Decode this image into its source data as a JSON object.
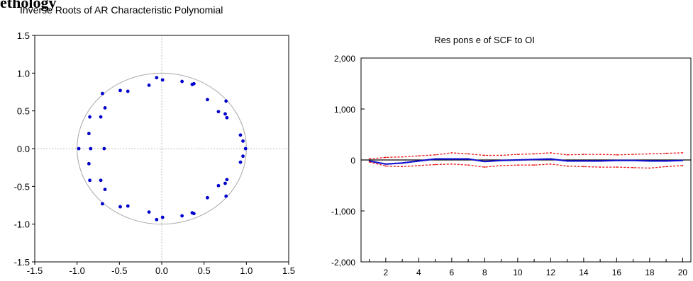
{
  "heading_fragment": "ethology",
  "chart_data": [
    {
      "type": "scatter",
      "title": "Inverse Roots of AR Characteristic Polynomial",
      "xlim": [
        -1.5,
        1.5
      ],
      "ylim": [
        -1.5,
        1.5
      ],
      "xticks": [
        "-1.5",
        "-1.0",
        "-0.5",
        "0.0",
        "0.5",
        "1.0",
        "1.5"
      ],
      "yticks": [
        "-1.5",
        "-1.0",
        "-0.5",
        "0.0",
        "0.5",
        "1.0",
        "1.5"
      ],
      "unit_circle": true,
      "point_color": "#0000cc",
      "points": [
        [
          -0.98,
          0.0
        ],
        [
          -0.84,
          0.0
        ],
        [
          -0.68,
          0.0
        ],
        [
          -0.86,
          0.2
        ],
        [
          -0.86,
          -0.2
        ],
        [
          -0.85,
          0.42
        ],
        [
          -0.85,
          -0.42
        ],
        [
          -0.72,
          0.42
        ],
        [
          -0.72,
          -0.42
        ],
        [
          -0.67,
          0.54
        ],
        [
          -0.67,
          -0.54
        ],
        [
          -0.7,
          0.73
        ],
        [
          -0.7,
          -0.73
        ],
        [
          -0.49,
          0.77
        ],
        [
          -0.49,
          -0.77
        ],
        [
          -0.4,
          0.76
        ],
        [
          -0.4,
          -0.76
        ],
        [
          -0.15,
          0.84
        ],
        [
          -0.15,
          -0.84
        ],
        [
          -0.06,
          0.94
        ],
        [
          -0.06,
          -0.94
        ],
        [
          0.01,
          0.91
        ],
        [
          0.01,
          -0.91
        ],
        [
          0.24,
          0.89
        ],
        [
          0.24,
          -0.89
        ],
        [
          0.36,
          0.85
        ],
        [
          0.36,
          -0.85
        ],
        [
          0.38,
          0.86
        ],
        [
          0.38,
          -0.86
        ],
        [
          0.54,
          0.65
        ],
        [
          0.54,
          -0.65
        ],
        [
          0.67,
          0.49
        ],
        [
          0.67,
          -0.49
        ],
        [
          0.75,
          0.46
        ],
        [
          0.75,
          -0.46
        ],
        [
          0.76,
          0.63
        ],
        [
          0.76,
          -0.63
        ],
        [
          0.77,
          0.41
        ],
        [
          0.77,
          -0.41
        ],
        [
          0.93,
          0.18
        ],
        [
          0.93,
          -0.18
        ],
        [
          0.96,
          0.1
        ],
        [
          0.96,
          -0.1
        ],
        [
          0.99,
          0.0
        ]
      ]
    },
    {
      "type": "line",
      "title": "Res pons e of SCF to OI",
      "xlim": [
        0.5,
        20.5
      ],
      "ylim": [
        -2000,
        2000
      ],
      "xticks": [
        "2",
        "4",
        "6",
        "8",
        "10",
        "12",
        "14",
        "16",
        "18",
        "20"
      ],
      "yticks": [
        "2,000",
        "1,000",
        "0",
        "-1,000",
        "-2,000"
      ],
      "ytick_values": [
        2000,
        1000,
        0,
        -1000,
        -2000
      ],
      "x": [
        1,
        2,
        3,
        4,
        5,
        6,
        7,
        8,
        9,
        10,
        11,
        12,
        13,
        14,
        15,
        16,
        17,
        18,
        19,
        20
      ],
      "series": [
        {
          "role": "response",
          "color": "#1010cc",
          "style": "solid",
          "values": [
            -20,
            -80,
            -60,
            -20,
            20,
            20,
            20,
            -30,
            -10,
            0,
            10,
            20,
            -20,
            -20,
            -20,
            -10,
            -10,
            -20,
            -20,
            -10
          ]
        },
        {
          "role": "upper-band",
          "color": "#ee1111",
          "style": "dashed",
          "values": [
            20,
            50,
            60,
            80,
            100,
            140,
            120,
            90,
            90,
            110,
            120,
            140,
            100,
            110,
            110,
            100,
            110,
            120,
            130,
            140
          ]
        },
        {
          "role": "lower-band",
          "color": "#ee1111",
          "style": "dashed",
          "values": [
            -40,
            -120,
            -130,
            -110,
            -90,
            -80,
            -100,
            -140,
            -110,
            -100,
            -100,
            -80,
            -120,
            -130,
            -140,
            -140,
            -150,
            -160,
            -130,
            -110
          ]
        }
      ]
    }
  ]
}
